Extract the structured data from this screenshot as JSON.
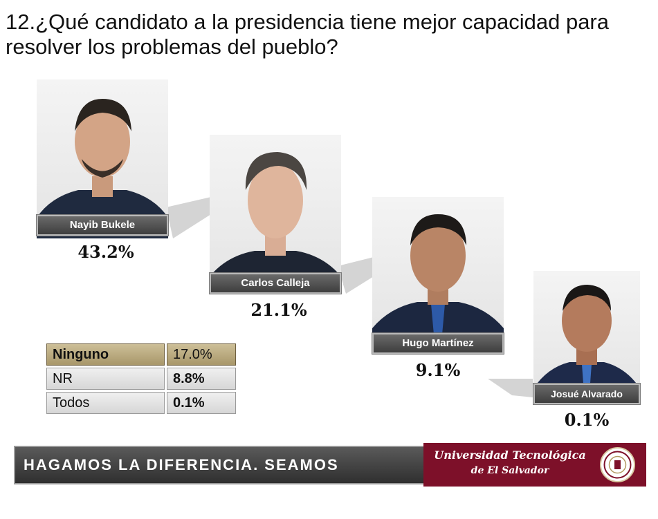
{
  "title": "12.¿Qué candidato a la presidencia tiene mejor capacidad para resolver los problemas del pueblo?",
  "candidates": [
    {
      "name": "Nayib Bukele",
      "percent": "43.2%"
    },
    {
      "name": "Carlos Calleja",
      "percent": "21.1%"
    },
    {
      "name": "Hugo Martínez",
      "percent": "9.1%"
    },
    {
      "name": "Josué Alvarado",
      "percent": "0.1%"
    }
  ],
  "other_results": [
    {
      "label": "Ninguno",
      "value": "17.0%"
    },
    {
      "label": "NR",
      "value": "8.8%"
    },
    {
      "label": "Todos",
      "value": "0.1%"
    }
  ],
  "footer": {
    "slogan": "HAGAMOS LA DIFERENCIA. SEAMOS MEJORES.",
    "university_line1": "Universidad Tecnológica",
    "university_line2": "de El Salvador"
  },
  "colors": {
    "accent_maroon": "#7d1029",
    "highlight_row": "#b8a77a",
    "name_bar": "#4e4e4e"
  }
}
